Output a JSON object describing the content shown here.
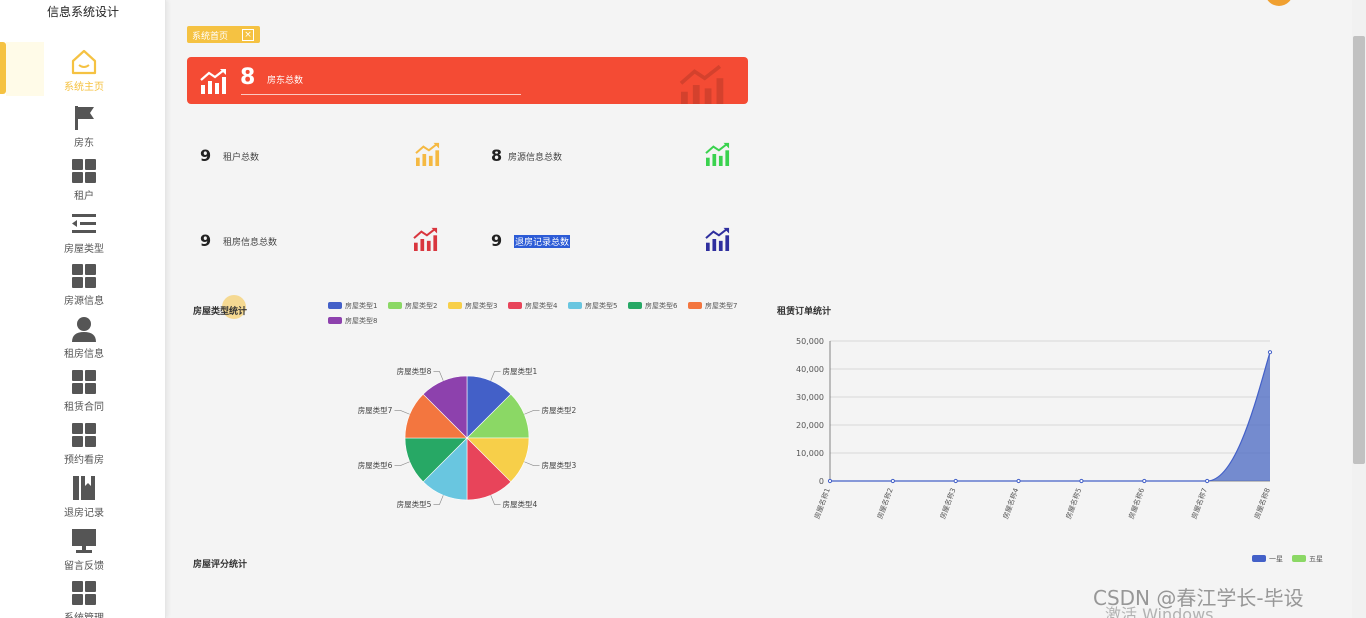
{
  "app": {
    "title": "信息系统设计"
  },
  "sidebar": {
    "items": [
      {
        "label": "系统主页",
        "icon": "home-icon",
        "active": true
      },
      {
        "label": "房东",
        "icon": "flag-icon"
      },
      {
        "label": "租户",
        "icon": "grid-icon"
      },
      {
        "label": "房屋类型",
        "icon": "indent-list-icon"
      },
      {
        "label": "房源信息",
        "icon": "grid-icon"
      },
      {
        "label": "租房信息",
        "icon": "user-icon"
      },
      {
        "label": "租赁合同",
        "icon": "grid-icon"
      },
      {
        "label": "预约看房",
        "icon": "grid-icon"
      },
      {
        "label": "退房记录",
        "icon": "bookmark-icon"
      },
      {
        "label": "留言反馈",
        "icon": "monitor-icon"
      },
      {
        "label": "系统管理",
        "icon": "grid-icon"
      }
    ]
  },
  "tabs": {
    "home_label": "系统首页",
    "close_glyph": "×"
  },
  "banner": {
    "value": "8",
    "label": "房东总数",
    "color": "#f44b34"
  },
  "stats": [
    {
      "value": "9",
      "label": "租户总数",
      "icon_color": "#f5b942"
    },
    {
      "value": "8",
      "label": "房源信息总数",
      "icon_color": "#3ad24e"
    },
    {
      "value": "9",
      "label": "租房信息总数",
      "icon_color": "#d9363e"
    },
    {
      "value": "9",
      "label": "退房记录总数",
      "icon_color": "#2f2f9e"
    }
  ],
  "pie": {
    "title": "房屋类型统计",
    "legend": [
      "房屋类型1",
      "房屋类型2",
      "房屋类型3",
      "房屋类型4",
      "房屋类型5",
      "房屋类型6",
      "房屋类型7",
      "房屋类型8"
    ],
    "colors": [
      "#4360c8",
      "#8bd865",
      "#f7cf49",
      "#e8445a",
      "#69c6e0",
      "#27a865",
      "#f3763f",
      "#8d41ad"
    ]
  },
  "line": {
    "title": "租赁订单统计",
    "y_ticks": [
      "50,000",
      "40,000",
      "30,000",
      "20,000",
      "10,000",
      "0"
    ],
    "x_labels": [
      "房屋名称1",
      "房屋名称2",
      "房屋名称3",
      "房屋名称4",
      "房屋名称5",
      "房屋名称6",
      "房屋名称7",
      "房屋名称8"
    ],
    "fill_color": "#5470c6"
  },
  "rating": {
    "title": "房屋评分统计",
    "legend": [
      "一星",
      "五星"
    ],
    "legend_colors": [
      "#4360c8",
      "#8bd865"
    ]
  },
  "chart_data": [
    {
      "type": "pie",
      "title": "房屋类型统计",
      "categories": [
        "房屋类型1",
        "房屋类型2",
        "房屋类型3",
        "房屋类型4",
        "房屋类型5",
        "房屋类型6",
        "房屋类型7",
        "房屋类型8"
      ],
      "values": [
        1,
        1,
        1,
        1,
        1,
        1,
        1,
        1
      ],
      "legend": "top"
    },
    {
      "type": "area",
      "title": "租赁订单统计",
      "categories": [
        "房屋名称1",
        "房屋名称2",
        "房屋名称3",
        "房屋名称4",
        "房屋名称5",
        "房屋名称6",
        "房屋名称7",
        "房屋名称8"
      ],
      "values": [
        0,
        0,
        0,
        0,
        0,
        0,
        0,
        46000
      ],
      "ylim": [
        0,
        50000
      ],
      "grid": true
    }
  ],
  "watermark": {
    "csdn": "CSDN @春江学长-毕设",
    "windows": "激活 Windows"
  }
}
